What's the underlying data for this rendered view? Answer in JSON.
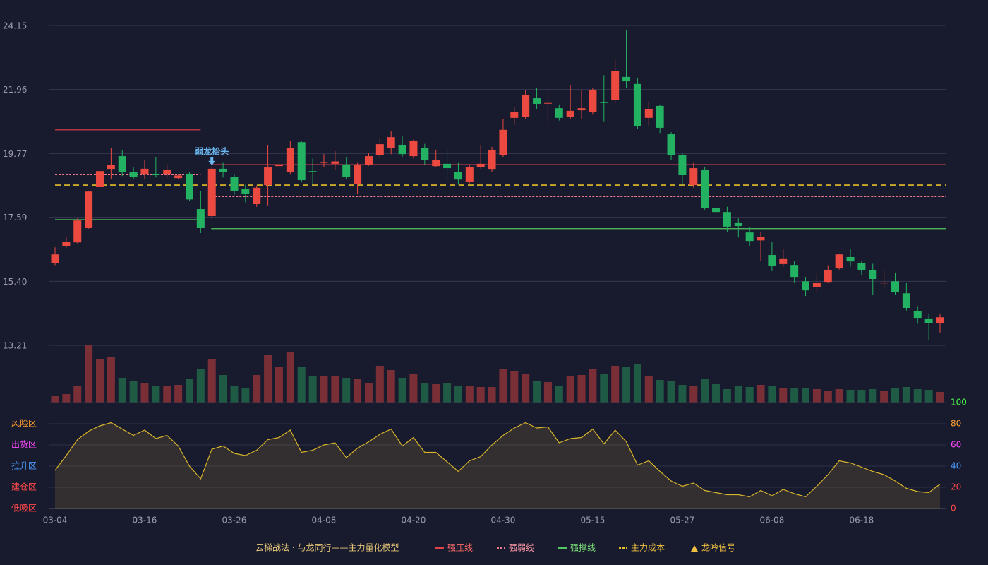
{
  "chart_data": [
    {
      "type": "candlestick",
      "categories": [
        "03-04",
        null,
        null,
        null,
        null,
        null,
        null,
        null,
        "03-16",
        null,
        null,
        null,
        null,
        null,
        null,
        null,
        "03-26",
        null,
        null,
        null,
        null,
        null,
        null,
        null,
        "04-08",
        null,
        null,
        null,
        null,
        null,
        null,
        null,
        "04-20",
        null,
        null,
        null,
        null,
        null,
        null,
        null,
        "04-30",
        null,
        null,
        null,
        null,
        null,
        null,
        null,
        "05-15",
        null,
        null,
        null,
        null,
        null,
        null,
        null,
        "05-27",
        null,
        null,
        null,
        null,
        null,
        null,
        null,
        "06-08",
        null,
        null,
        null,
        null,
        null,
        null,
        null,
        "06-18",
        null,
        null,
        null,
        null,
        null,
        null,
        null
      ],
      "open": [
        16.03,
        16.59,
        16.73,
        17.22,
        18.62,
        19.22,
        19.68,
        19.15,
        19.05,
        19.08,
        19.05,
        18.93,
        19.08,
        17.87,
        17.63,
        19.25,
        18.98,
        18.57,
        18.04,
        18.69,
        19.34,
        19.15,
        20.16,
        19.17,
        19.45,
        19.42,
        19.4,
        18.72,
        19.4,
        19.73,
        19.97,
        20.07,
        19.68,
        19.97,
        19.34,
        19.42,
        19.13,
        18.81,
        19.32,
        19.22,
        19.73,
        20.99,
        21.03,
        21.66,
        21.48,
        21.32,
        21.03,
        21.25,
        21.2,
        21.53,
        21.61,
        22.39,
        22.15,
        20.99,
        21.4,
        20.43,
        19.73,
        18.69,
        19.2,
        17.9,
        17.77,
        17.39,
        17.07,
        16.8,
        16.3,
        15.99,
        15.96,
        15.4,
        15.21,
        15.38,
        15.84,
        16.23,
        16.03,
        15.77,
        15.33,
        15.4,
        14.99,
        14.37,
        14.13,
        13.98
      ],
      "high": [
        16.56,
        16.9,
        17.55,
        18.5,
        19.4,
        19.95,
        19.88,
        19.3,
        19.55,
        19.65,
        19.4,
        19.05,
        19.15,
        18.5,
        19.3,
        19.45,
        19.05,
        18.7,
        18.65,
        20.05,
        19.85,
        20.2,
        20.2,
        19.6,
        19.75,
        19.85,
        19.65,
        19.45,
        19.8,
        20.3,
        20.55,
        20.35,
        20.25,
        20.1,
        19.9,
        19.95,
        19.45,
        19.4,
        20.05,
        20.0,
        20.95,
        21.35,
        21.95,
        22.0,
        21.95,
        21.45,
        22.1,
        21.95,
        22.0,
        22.45,
        23.0,
        24.0,
        22.35,
        21.55,
        21.45,
        20.5,
        19.8,
        19.45,
        19.3,
        18.05,
        17.95,
        17.55,
        17.25,
        17.1,
        16.75,
        16.5,
        16.1,
        15.55,
        15.65,
        15.95,
        16.35,
        16.5,
        16.1,
        16.0,
        15.8,
        15.7,
        15.35,
        14.55,
        14.3,
        14.3
      ],
      "low": [
        15.95,
        16.55,
        16.7,
        17.2,
        18.45,
        18.9,
        19.0,
        18.9,
        18.9,
        18.95,
        18.95,
        18.9,
        18.15,
        17.05,
        17.55,
        18.95,
        18.35,
        18.1,
        17.95,
        18.0,
        19.1,
        19.05,
        18.8,
        18.7,
        19.3,
        19.2,
        18.9,
        18.4,
        19.35,
        19.6,
        19.75,
        19.65,
        19.6,
        19.4,
        19.3,
        18.9,
        18.7,
        18.75,
        19.25,
        19.15,
        19.65,
        20.75,
        20.95,
        21.3,
        20.8,
        20.9,
        20.95,
        20.95,
        21.1,
        20.85,
        21.5,
        22.0,
        20.6,
        20.7,
        20.45,
        19.55,
        18.7,
        18.6,
        17.85,
        17.6,
        17.1,
        16.9,
        16.6,
        16.1,
        15.75,
        15.9,
        15.35,
        14.9,
        15.05,
        15.35,
        15.8,
        15.9,
        15.6,
        14.95,
        15.2,
        14.95,
        14.4,
        13.95,
        13.4,
        13.65
      ],
      "close": [
        16.32,
        16.76,
        17.48,
        18.47,
        19.17,
        19.39,
        19.15,
        18.98,
        19.25,
        19.03,
        19.2,
        19.02,
        18.2,
        17.22,
        19.25,
        19.13,
        18.5,
        18.38,
        18.6,
        19.32,
        19.4,
        19.95,
        18.86,
        19.13,
        19.48,
        19.5,
        18.98,
        19.37,
        19.68,
        20.09,
        20.33,
        19.75,
        20.19,
        19.56,
        19.56,
        19.27,
        18.88,
        19.32,
        19.42,
        19.9,
        20.58,
        21.18,
        21.78,
        21.47,
        21.5,
        20.99,
        21.23,
        21.32,
        21.93,
        21.5,
        22.6,
        22.24,
        20.7,
        21.28,
        20.65,
        19.71,
        19.03,
        19.27,
        17.92,
        17.77,
        17.27,
        17.29,
        16.78,
        16.93,
        15.94,
        16.16,
        15.55,
        15.09,
        15.36,
        15.77,
        16.32,
        16.08,
        15.77,
        15.48,
        15.36,
        15.02,
        14.49,
        14.15,
        13.98,
        14.17
      ],
      "up_color": "#ec4a40",
      "down_color": "#22b262",
      "ylim": [
        13.21,
        24.15
      ],
      "yticks": [
        24.15,
        21.96,
        19.77,
        17.59,
        {
          "value": 15.4,
          "label": "15.40"
        },
        13.21
      ],
      "grid": true,
      "lines": [
        {
          "name": "强压线",
          "color": "#e0434a",
          "text_color": "#ff6b6b",
          "dash": false,
          "segments": [
            {
              "from": 0,
              "to": 13,
              "value": 20.58
            },
            {
              "from": 14,
              "to": 79,
              "value": 19.39
            }
          ]
        },
        {
          "name": "强弱线",
          "color": "#f07a8a",
          "text_color": "#ff9aa8",
          "dash": true,
          "segments": [
            {
              "from": 0,
              "to": 13,
              "value": 19.05
            },
            {
              "from": 14,
              "to": 79,
              "value": 18.3
            }
          ]
        },
        {
          "name": "强撑线",
          "color": "#4fc860",
          "text_color": "#7be27b",
          "dash": false,
          "segments": [
            {
              "from": 0,
              "to": 13,
              "value": 17.51
            },
            {
              "from": 14,
              "to": 79,
              "value": 17.2
            }
          ]
        },
        {
          "name": "主力成本",
          "color": "#e6c02a",
          "text_color": "#f0c040",
          "dash": true,
          "segments": [
            {
              "from": 0,
              "to": 79,
              "value": 18.69
            }
          ]
        }
      ],
      "signal": {
        "name": "龙吟信号",
        "color": "#f0c040"
      },
      "annotation": {
        "text": "弱龙抬头",
        "index": 14,
        "color": "#6ab8f0"
      },
      "legend_title": "云梯战法 · 与龙同行——主力量化模型"
    },
    {
      "type": "bar",
      "values": [
        10,
        12,
        23,
        82,
        62,
        65,
        35,
        30,
        28,
        23,
        23,
        25,
        33,
        47,
        61,
        39,
        24,
        20,
        39,
        68,
        51,
        71,
        51,
        37,
        37,
        37,
        35,
        33,
        27,
        52,
        46,
        35,
        41,
        27,
        26,
        27,
        23,
        23,
        22,
        22,
        48,
        45,
        41,
        30,
        29,
        24,
        37,
        39,
        48,
        40,
        52,
        50,
        54,
        37,
        32,
        31,
        25,
        23,
        33,
        26,
        19,
        23,
        22,
        25,
        23,
        20,
        21,
        20,
        19,
        16,
        19,
        18,
        18,
        19,
        17,
        20,
        22,
        19,
        18,
        15
      ],
      "up_color": "#7a2f37",
      "down_color": "#1f5a45"
    },
    {
      "type": "line",
      "values": [
        36,
        50,
        65,
        73,
        78,
        81,
        75,
        69,
        74,
        66,
        69,
        59,
        40,
        28,
        56,
        59,
        52,
        50,
        55,
        65,
        67,
        74,
        53,
        55,
        60,
        62,
        48,
        57,
        63,
        70,
        75,
        59,
        67,
        53,
        53,
        44,
        35,
        45,
        49,
        60,
        69,
        76,
        81,
        76,
        77,
        62,
        66,
        67,
        75,
        61,
        74,
        63,
        41,
        45,
        35,
        26,
        21,
        24,
        17,
        15,
        13,
        13,
        11,
        17,
        12,
        18,
        14,
        11,
        21,
        32,
        45,
        43,
        39,
        35,
        32,
        26,
        19,
        16,
        15,
        23
      ],
      "color": "#d8b42a",
      "ylim": [
        0,
        100
      ],
      "yticks": [
        0,
        20,
        40,
        60,
        80,
        100
      ],
      "ytick_colors": [
        "#ff4a4a",
        "#ff4a4a",
        "#4a9cff",
        "#ff4aff",
        "#ffa030",
        "#4aff4a"
      ],
      "zones": [
        {
          "label": "风险区",
          "value": 80,
          "color": "#ffa030"
        },
        {
          "label": "出货区",
          "value": 60,
          "color": "#ff4aff"
        },
        {
          "label": "拉升区",
          "value": 40,
          "color": "#4a9cff"
        },
        {
          "label": "建仓区",
          "value": 20,
          "color": "#ff4a4a"
        },
        {
          "label": "低吸区",
          "value": 0,
          "color": "#ff4a4a"
        }
      ]
    }
  ]
}
